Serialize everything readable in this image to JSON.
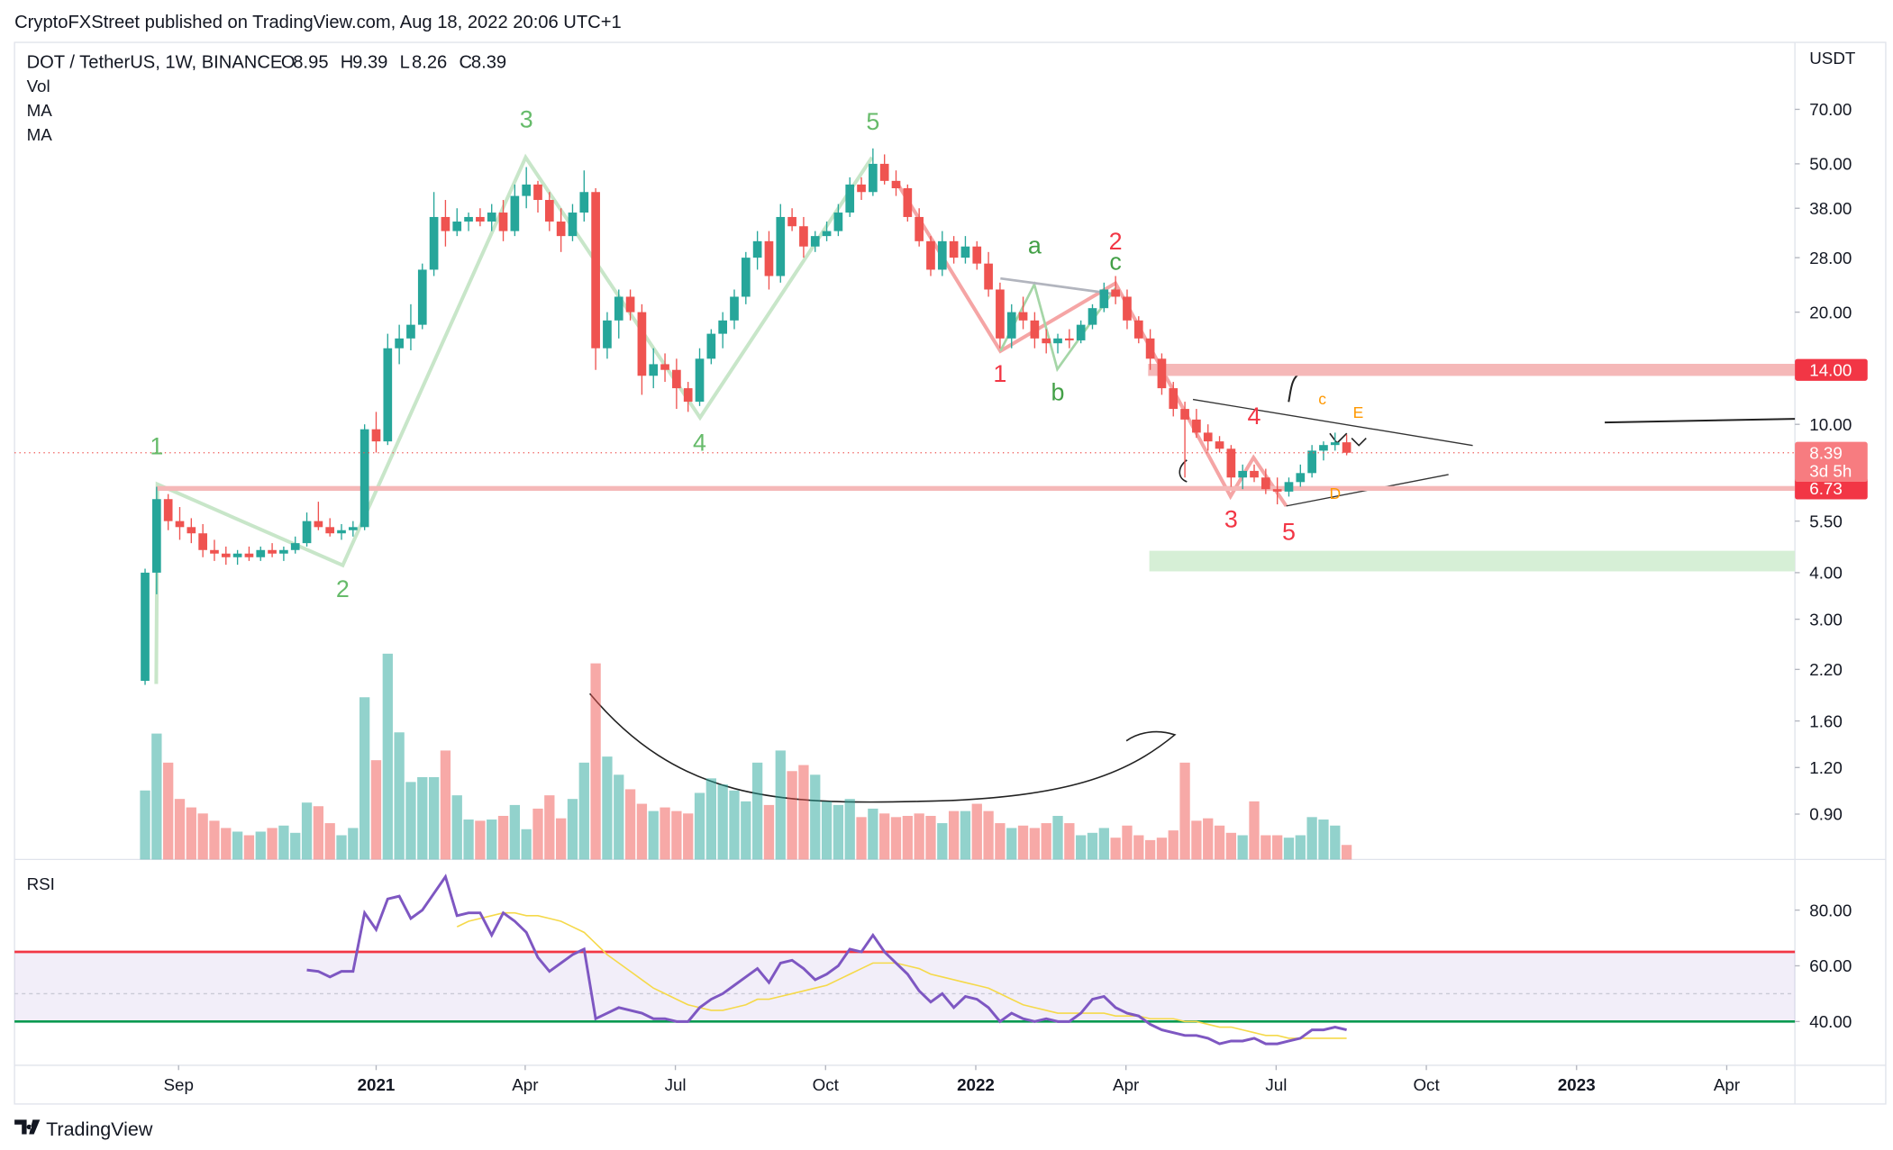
{
  "header": {
    "publisher": "CryptoFXStreet published on TradingView.com, Aug 18, 2022 20:06 UTC+1",
    "brand": "TradingView"
  },
  "chart_data": {
    "type": "candlestick",
    "title": "DOT / TetherUS, 1W, BINANCE",
    "ohlc_prefixes": [
      "O",
      "H",
      "L",
      "C"
    ],
    "indicators": [
      "Vol",
      "MA",
      "MA"
    ],
    "currency": "USDT",
    "log_scale": true,
    "up_color": "#26a69a",
    "down_color": "#ef5350",
    "x": [
      0,
      1,
      2,
      3,
      4,
      5,
      6,
      7,
      8,
      9,
      10,
      11,
      12,
      13,
      14,
      15,
      16,
      17,
      18,
      19,
      20,
      21,
      22,
      23,
      24,
      25,
      26,
      27,
      28,
      29,
      30,
      31,
      32,
      33,
      34,
      35,
      36,
      37,
      38,
      39,
      40,
      41,
      42,
      43,
      44,
      45,
      46,
      47,
      48,
      49,
      50,
      51,
      52,
      53,
      54,
      55,
      56,
      57,
      58,
      59,
      60,
      61,
      62,
      63,
      64,
      65,
      66,
      67,
      68,
      69,
      70,
      71,
      72,
      73,
      74,
      75,
      76,
      77,
      78,
      79,
      80,
      81,
      82,
      83,
      84,
      85,
      86,
      87,
      88,
      89,
      90,
      91,
      92,
      93,
      94,
      95,
      96,
      97,
      98,
      99,
      100,
      101,
      102,
      103,
      104
    ],
    "open": [
      2.05,
      4.0,
      6.3,
      5.5,
      5.3,
      5.1,
      4.6,
      4.5,
      4.4,
      4.5,
      4.4,
      4.6,
      4.5,
      4.6,
      4.8,
      5.5,
      5.3,
      5.1,
      5.2,
      5.3,
      9.7,
      9.0,
      16,
      17,
      18.5,
      26,
      36,
      33,
      35,
      36,
      35,
      37,
      33,
      41,
      44,
      40,
      35,
      32,
      37,
      42,
      16,
      19,
      22,
      20,
      13.5,
      14.5,
      14,
      12.5,
      11.5,
      15,
      17.5,
      19,
      22,
      28,
      31,
      25,
      36,
      34,
      30,
      32,
      33,
      37,
      44,
      42,
      50,
      45,
      43,
      36,
      31,
      26,
      31,
      28,
      30,
      27,
      23,
      17,
      20,
      19,
      17,
      16.5,
      17,
      16.8,
      18.5,
      20.5,
      23,
      22,
      19,
      17,
      15,
      12.5,
      11,
      10.3,
      9.5,
      9,
      8.6,
      7.2,
      7.5,
      7.2,
      6.7,
      6.6,
      7.0,
      7.4,
      8.5,
      8.8,
      8.95
    ],
    "high": [
      4.1,
      6.8,
      6.5,
      6.0,
      5.6,
      5.4,
      4.9,
      4.7,
      4.6,
      4.7,
      4.7,
      4.8,
      4.7,
      5.0,
      5.8,
      6.2,
      5.6,
      5.4,
      5.5,
      10.0,
      10.8,
      17.5,
      18.5,
      21,
      27,
      42,
      40,
      38,
      37,
      38,
      39,
      40,
      44,
      49,
      45,
      42,
      38,
      39,
      48,
      43,
      20,
      23,
      23,
      21,
      16,
      15.5,
      15,
      13,
      16,
      18,
      20,
      23,
      29,
      33,
      33,
      39,
      38,
      36,
      33,
      35,
      39,
      46,
      46,
      55,
      53,
      48,
      44,
      38,
      32,
      33,
      32,
      32,
      31,
      29,
      24,
      21,
      22,
      20,
      18,
      17.5,
      18,
      19,
      21,
      24,
      25,
      23,
      19.5,
      18,
      15.5,
      13,
      11.5,
      11,
      10,
      9.3,
      8.8,
      7.8,
      7.8,
      7.6,
      7.2,
      7.2,
      7.8,
      8.8,
      9.0,
      9.5,
      9.39
    ],
    "low": [
      2.0,
      3.5,
      5.2,
      4.9,
      4.8,
      4.4,
      4.3,
      4.2,
      4.2,
      4.3,
      4.3,
      4.4,
      4.3,
      4.5,
      4.7,
      5.2,
      5.0,
      4.9,
      5.0,
      5.2,
      8.4,
      8.8,
      14.5,
      15.8,
      18,
      25,
      30,
      32,
      33,
      34,
      33,
      31,
      32,
      38,
      37,
      33,
      29,
      31,
      35,
      14,
      15,
      17,
      19,
      12,
      12.5,
      13,
      11,
      10.8,
      11.2,
      14.5,
      16,
      18,
      21,
      26,
      23,
      24,
      33,
      28,
      29,
      31,
      32,
      36,
      40,
      41,
      44,
      41,
      35,
      30,
      25,
      25,
      27,
      27,
      26,
      22,
      16,
      16,
      18,
      16,
      15.5,
      15.5,
      16,
      16.5,
      18,
      20,
      21,
      18,
      16.5,
      14,
      12,
      10.5,
      7.2,
      9.2,
      8.5,
      8.4,
      6.8,
      6.7,
      7.0,
      6.5,
      6.1,
      6.4,
      6.8,
      7.2,
      8.0,
      8.5,
      8.26
    ],
    "close": [
      4.0,
      6.3,
      5.5,
      5.3,
      5.1,
      4.6,
      4.5,
      4.4,
      4.5,
      4.4,
      4.6,
      4.5,
      4.6,
      4.8,
      5.5,
      5.3,
      5.1,
      5.2,
      5.3,
      9.7,
      9.0,
      16,
      17,
      18.5,
      26,
      36,
      33,
      35,
      36,
      35,
      37,
      33,
      41,
      44,
      40,
      35,
      32,
      37,
      42,
      16,
      19,
      22,
      20,
      13.5,
      14.5,
      14,
      12.5,
      11.5,
      15,
      17.5,
      19,
      22,
      28,
      31,
      25,
      36,
      34,
      30,
      32,
      33,
      37,
      44,
      42,
      50,
      45,
      43,
      36,
      31,
      26,
      31,
      28,
      30,
      27,
      23,
      17,
      20,
      19,
      17,
      16.5,
      17,
      16.8,
      18.5,
      20.5,
      23,
      22,
      19,
      17,
      15,
      12.5,
      11,
      10.3,
      9.5,
      9,
      8.6,
      7.2,
      7.5,
      7.2,
      6.7,
      6.6,
      7.0,
      7.4,
      8.5,
      8.8,
      8.95,
      8.39
    ],
    "volume": [
      57,
      104,
      80,
      50,
      43,
      38,
      32,
      26,
      23,
      20,
      23,
      26,
      28,
      22,
      47,
      44,
      30,
      20,
      26,
      134,
      82,
      170,
      105,
      64,
      68,
      68,
      90,
      53,
      33,
      32,
      33,
      36,
      45,
      25,
      42,
      53,
      34,
      50,
      80,
      162,
      85,
      70,
      58,
      46,
      40,
      43,
      40,
      38,
      55,
      67,
      62,
      57,
      48,
      80,
      45,
      90,
      73,
      78,
      70,
      48,
      45,
      50,
      35,
      42,
      38,
      35,
      36,
      38,
      36,
      30,
      40,
      40,
      46,
      40,
      30,
      26,
      28,
      26,
      30,
      36,
      30,
      20,
      22,
      26,
      18,
      28,
      20,
      16,
      18,
      24,
      80,
      32,
      34,
      28,
      22,
      20,
      48,
      20,
      20,
      18,
      20,
      35,
      33,
      28,
      12
    ],
    "xlim": [
      -11.3,
      142.8
    ],
    "xticks": [
      {
        "value": 2.9,
        "label": "Sep"
      },
      {
        "value": 20,
        "label": "2021"
      },
      {
        "value": 32.9,
        "label": "Apr"
      },
      {
        "value": 45.9,
        "label": "Jul"
      },
      {
        "value": 58.9,
        "label": "Oct"
      },
      {
        "value": 71.9,
        "label": "2022"
      },
      {
        "value": 84.9,
        "label": "Apr"
      },
      {
        "value": 97.9,
        "label": "Jul"
      },
      {
        "value": 110.9,
        "label": "Oct"
      },
      {
        "value": 123.9,
        "label": "2023"
      },
      {
        "value": 136.9,
        "label": "Apr"
      }
    ],
    "ylim": [
      0.68,
      102
    ],
    "yticks": [
      {
        "value": 70,
        "label": "70.00"
      },
      {
        "value": 50,
        "label": "50.00"
      },
      {
        "value": 38,
        "label": "38.00"
      },
      {
        "value": 28,
        "label": "28.00"
      },
      {
        "value": 20,
        "label": "20.00"
      },
      {
        "value": 10,
        "label": "10.00"
      },
      {
        "value": 5.5,
        "label": "5.50"
      },
      {
        "value": 4,
        "label": "4.00"
      },
      {
        "value": 3,
        "label": "3.00"
      },
      {
        "value": 2.2,
        "label": "2.20"
      },
      {
        "value": 1.6,
        "label": "1.60"
      },
      {
        "value": 1.2,
        "label": "1.20"
      },
      {
        "value": 0.9,
        "label": "0.90"
      }
    ],
    "levels": [
      {
        "value": 14,
        "label": "14.00",
        "color": "#f23645"
      },
      {
        "value": 6.73,
        "label": "6.73",
        "color": "#f23645"
      }
    ],
    "countdown": "3d 5h",
    "annotations": [
      {
        "text": "1",
        "x": 1,
        "y": 8.3,
        "color": "#66bb6a"
      },
      {
        "text": "2",
        "x": 17.1,
        "y": 3.44,
        "color": "#66bb6a"
      },
      {
        "text": "3",
        "x": 33,
        "y": 62.6,
        "color": "#66bb6a"
      },
      {
        "text": "4",
        "x": 48,
        "y": 8.5,
        "color": "#66bb6a"
      },
      {
        "text": "5",
        "x": 63,
        "y": 61.8,
        "color": "#66bb6a"
      },
      {
        "text": "a",
        "x": 77,
        "y": 28.7,
        "color": "#43a047"
      },
      {
        "text": "b",
        "x": 79,
        "y": 11.6,
        "color": "#43a047"
      },
      {
        "text": "c",
        "x": 84,
        "y": 26,
        "color": "#43a047"
      },
      {
        "text": "2",
        "x": 84,
        "y": 29.5,
        "color": "#f23645"
      },
      {
        "text": "1",
        "x": 74,
        "y": 13,
        "color": "#f23645"
      },
      {
        "text": "3",
        "x": 94,
        "y": 5.3,
        "color": "#f23645"
      },
      {
        "text": "4",
        "x": 96,
        "y": 10,
        "color": "#f23645"
      },
      {
        "text": "5",
        "x": 99,
        "y": 4.9,
        "color": "#f23645"
      },
      {
        "text": "c",
        "x": 101.9,
        "y": 11.3,
        "color": "#ff9800"
      },
      {
        "text": "E",
        "x": 105,
        "y": 10.4,
        "color": "#ff9800"
      },
      {
        "text": "D",
        "x": 103,
        "y": 6.3,
        "color": "#ff9800"
      }
    ],
    "rsi": {
      "title": "RSI",
      "color": "#7e57c2",
      "ma_color": "#f5d94a",
      "ylim": [
        24.3,
        96
      ],
      "yticks": [
        {
          "value": 80,
          "label": "80.00"
        },
        {
          "value": 60,
          "label": "60.00"
        },
        {
          "value": 40,
          "label": "40.00"
        }
      ],
      "bands": [
        65,
        50,
        40
      ],
      "values": [
        null,
        null,
        null,
        null,
        null,
        null,
        null,
        null,
        null,
        null,
        null,
        null,
        null,
        null,
        58.5,
        58,
        56,
        58,
        58,
        79,
        73,
        84,
        85,
        77,
        80,
        86,
        92,
        78,
        79,
        79,
        71,
        79,
        76,
        72,
        63,
        58,
        61,
        64,
        66,
        41,
        43,
        45,
        44,
        43,
        41,
        41,
        40,
        40,
        45,
        48,
        50,
        53,
        56,
        59,
        54,
        61,
        62,
        59,
        55,
        57,
        60,
        66,
        65,
        71,
        65,
        61,
        57,
        51,
        47,
        50,
        45,
        49,
        48,
        45,
        40,
        43,
        41,
        40,
        41,
        40,
        40,
        43,
        48,
        49,
        45,
        43,
        42,
        39,
        37,
        36,
        35,
        35,
        34,
        32,
        33,
        33,
        34,
        32,
        32,
        33,
        34,
        37,
        37,
        38,
        37
      ],
      "ma": [
        null,
        null,
        null,
        null,
        null,
        null,
        null,
        null,
        null,
        null,
        null,
        null,
        null,
        null,
        null,
        null,
        null,
        null,
        null,
        null,
        null,
        null,
        null,
        null,
        null,
        null,
        null,
        74,
        76,
        77,
        78,
        79,
        79,
        78,
        78,
        77,
        76,
        74,
        72,
        68,
        64,
        61,
        58,
        55,
        52,
        50,
        48,
        46,
        45,
        44,
        44,
        45,
        46,
        48,
        48,
        49,
        50,
        51,
        52,
        53,
        55,
        57,
        59,
        61,
        61,
        61,
        60,
        59,
        57,
        56,
        55,
        54,
        53,
        52,
        50,
        48,
        46,
        45,
        44,
        43,
        43,
        43,
        43,
        43,
        42,
        42,
        42,
        41,
        41,
        41,
        40,
        40,
        39,
        38,
        38,
        37,
        36,
        35,
        35,
        34,
        34,
        34,
        34,
        34,
        34
      ]
    }
  }
}
